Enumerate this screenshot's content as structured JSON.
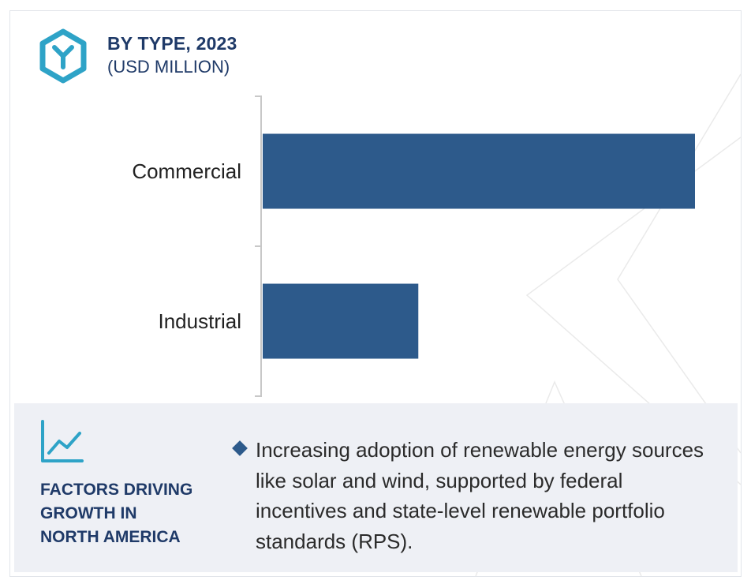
{
  "header": {
    "title": "BY TYPE, 2023",
    "subtitle": "(USD MILLION)",
    "logo_icon": "cube-y-icon"
  },
  "colors": {
    "bar": "#2d5a8b",
    "heading": "#1f3a68",
    "logo": "#2ea3c7",
    "panel": "#eef0f5",
    "axis": "#c8c8c8"
  },
  "chart_data": {
    "type": "bar",
    "orientation": "horizontal",
    "title": "BY TYPE, 2023",
    "subtitle": "(USD MILLION)",
    "categories": [
      "Commercial",
      "Industrial"
    ],
    "values": [
      100,
      36
    ],
    "value_axis_labels": "none",
    "grid": false,
    "legend": "none"
  },
  "factors": {
    "icon": "trend-chart-icon",
    "heading_lines": [
      "FACTORS DRIVING",
      "GROWTH IN",
      "NORTH AMERICA"
    ],
    "bullets": [
      "Increasing adoption of renewable energy sources like solar and wind, supported by federal incentives and state-level renewable portfolio standards (RPS)."
    ]
  }
}
